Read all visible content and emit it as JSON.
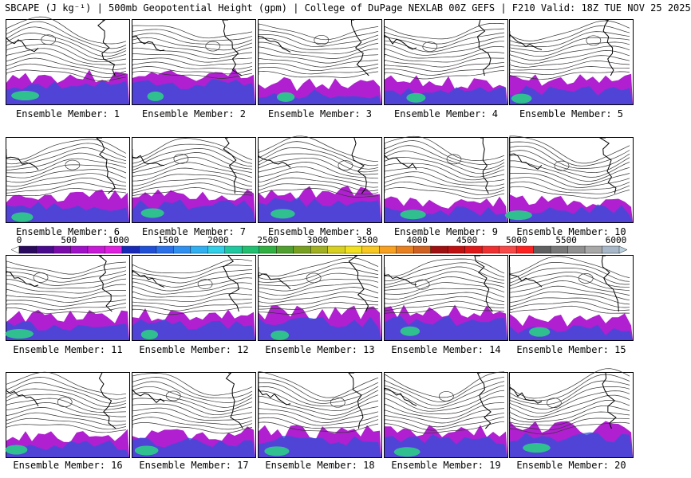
{
  "header": {
    "title": "SBCAPE (J kg⁻¹) | 500mb Geopotential Height (gpm) | College of DuPage NEXLAB 00Z GEFS | F210 Valid: 18Z TUE NOV 25 2025"
  },
  "panels": [
    {
      "caption": "Ensemble Member: 1"
    },
    {
      "caption": "Ensemble Member: 2"
    },
    {
      "caption": "Ensemble Member: 3"
    },
    {
      "caption": "Ensemble Member: 4"
    },
    {
      "caption": "Ensemble Member: 5"
    },
    {
      "caption": "Ensemble Member: 6"
    },
    {
      "caption": "Ensemble Member: 7"
    },
    {
      "caption": "Ensemble Member: 8"
    },
    {
      "caption": "Ensemble Member: 9"
    },
    {
      "caption": "Ensemble Member: 10"
    },
    {
      "caption": "Ensemble Member: 11"
    },
    {
      "caption": "Ensemble Member: 12"
    },
    {
      "caption": "Ensemble Member: 13"
    },
    {
      "caption": "Ensemble Member: 14"
    },
    {
      "caption": "Ensemble Member: 15"
    },
    {
      "caption": "Ensemble Member: 16"
    },
    {
      "caption": "Ensemble Member: 17"
    },
    {
      "caption": "Ensemble Member: 18"
    },
    {
      "caption": "Ensemble Member: 19"
    },
    {
      "caption": "Ensemble Member: 20"
    }
  ],
  "colorbar": {
    "ticks": [
      "0",
      "500",
      "1000",
      "1500",
      "2000",
      "2500",
      "3000",
      "3500",
      "4000",
      "4500",
      "5000",
      "5500",
      "6000"
    ],
    "colors": [
      "#ffffff",
      "#2a0a5e",
      "#4a0a8e",
      "#7a0aaa",
      "#a010c8",
      "#c818d8",
      "#e020e0",
      "#1a2ab8",
      "#2050d8",
      "#2a70e8",
      "#3090f0",
      "#30b0f0",
      "#30d0e8",
      "#20c8a0",
      "#20c070",
      "#30b040",
      "#50a030",
      "#78a020",
      "#a0b020",
      "#d8d020",
      "#f0e020",
      "#f8c820",
      "#f8a020",
      "#e88020",
      "#d06020",
      "#a01010",
      "#c01010",
      "#e01818",
      "#f03030",
      "#f84848",
      "#ff2020",
      "#606060",
      "#787878",
      "#909090",
      "#a8a8a8",
      "#a8b8c8",
      "#b8d0e0"
    ]
  }
}
